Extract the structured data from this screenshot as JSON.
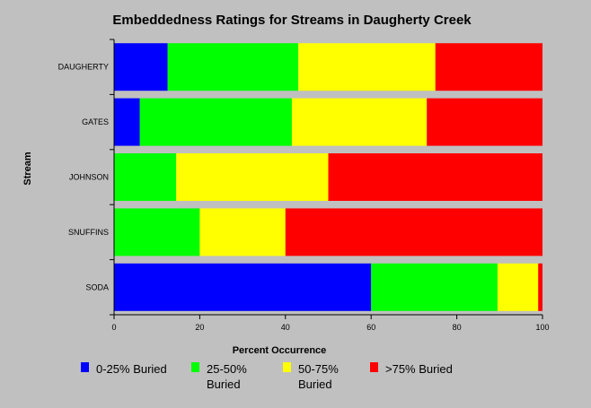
{
  "chart_data": {
    "type": "bar",
    "orientation": "horizontal",
    "stacked": true,
    "title": "Embeddedness Ratings for Streams in Daugherty Creek",
    "xlabel": "Percent Occurrence",
    "ylabel": "Stream",
    "xlim": [
      0,
      100
    ],
    "xticks": [
      "0",
      "20",
      "40",
      "60",
      "80",
      "100"
    ],
    "categories": [
      "DAUGHERTY",
      "GATES",
      "JOHNSON",
      "SNUFFINS",
      "SODA"
    ],
    "series": [
      {
        "name": "0-25% Buried",
        "color": "#0000ff",
        "values": [
          12.5,
          6,
          0,
          0,
          60
        ]
      },
      {
        "name": "25-50% Buried",
        "color": "#00ff00",
        "values": [
          30.5,
          35.5,
          14.5,
          20,
          29.5
        ]
      },
      {
        "name": "50-75% Buried",
        "color": "#ffff00",
        "values": [
          32,
          31.5,
          35.5,
          20,
          9.5
        ]
      },
      {
        "name": ">75% Buried",
        "color": "#ff0000",
        "values": [
          25,
          27,
          50,
          60,
          1
        ]
      }
    ],
    "legend": {
      "placement": "bottom",
      "items": [
        {
          "lines": [
            "0-25% Buried"
          ]
        },
        {
          "lines": [
            "25-50%",
            "Buried"
          ]
        },
        {
          "lines": [
            "50-75%",
            "Buried"
          ]
        },
        {
          "lines": [
            ">75% Buried"
          ]
        }
      ]
    },
    "grid": false
  }
}
